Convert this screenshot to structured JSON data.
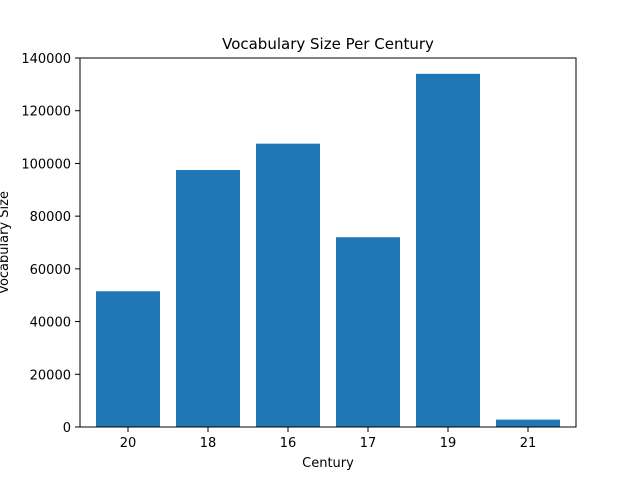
{
  "chart_data": {
    "type": "bar",
    "title": "Vocabulary Size Per Century",
    "xlabel": "Century",
    "ylabel": "Vocabulary Size",
    "categories": [
      "20",
      "18",
      "16",
      "17",
      "19",
      "21"
    ],
    "values": [
      51500,
      97500,
      107500,
      72000,
      134000,
      2800
    ],
    "ylim": [
      0,
      140000
    ],
    "yticks": [
      0,
      20000,
      40000,
      60000,
      80000,
      100000,
      120000,
      140000
    ],
    "ytick_labels": [
      "0",
      "20000",
      "40000",
      "60000",
      "80000",
      "100000",
      "120000",
      "140000"
    ],
    "bar_color": "#1f77b4",
    "grid": false,
    "legend": false
  }
}
